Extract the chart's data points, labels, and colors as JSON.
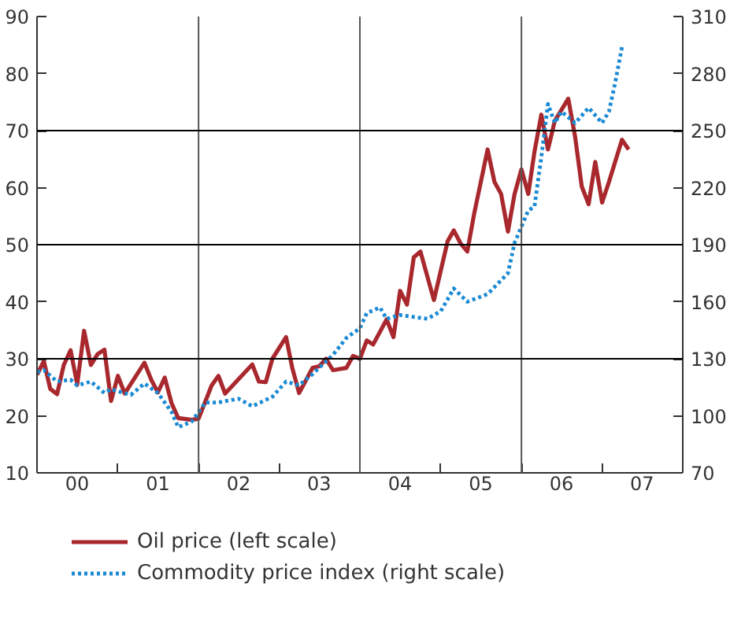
{
  "chart_data": {
    "type": "line",
    "xlim": [
      "2000-01",
      "2008-01"
    ],
    "ylim": [
      10,
      90
    ],
    "y2lim": [
      70,
      310
    ],
    "xticks": [
      {
        "value": "2000-07",
        "label": "00"
      },
      {
        "value": "2001-07",
        "label": "01"
      },
      {
        "value": "2002-07",
        "label": "02"
      },
      {
        "value": "2003-07",
        "label": "03"
      },
      {
        "value": "2004-07",
        "label": "04"
      },
      {
        "value": "2005-07",
        "label": "05"
      },
      {
        "value": "2006-07",
        "label": "06"
      },
      {
        "value": "2007-07",
        "label": "07"
      },
      {
        "value": "2001-01",
        "label": null
      },
      {
        "value": "2002-01",
        "label": null
      },
      {
        "value": "2003-01",
        "label": null
      },
      {
        "value": "2004-01",
        "label": null
      },
      {
        "value": "2005-01",
        "label": null
      },
      {
        "value": "2006-01",
        "label": null
      },
      {
        "value": "2007-01",
        "label": null
      }
    ],
    "yticks": [
      10,
      20,
      30,
      40,
      50,
      60,
      70,
      80,
      90
    ],
    "y2ticks": [
      70,
      100,
      130,
      160,
      190,
      220,
      250,
      280,
      310
    ],
    "grid": false,
    "legend": "bottom",
    "ref_lines": [
      {
        "axis": "x",
        "value": "2002-01",
        "color": "#555555"
      },
      {
        "axis": "x",
        "value": "2004-01",
        "color": "#555555"
      },
      {
        "axis": "x",
        "value": "2006-01",
        "color": "#555555"
      },
      {
        "axis": "y",
        "value": 30,
        "color": "#000000"
      },
      {
        "axis": "y",
        "value": 50,
        "color": "#000000"
      },
      {
        "axis": "y",
        "value": 70,
        "color": "#000000"
      }
    ],
    "series": [
      {
        "name": "Oil price (left scale)",
        "color": "#a8282e",
        "line_style": "solid",
        "x": [
          "2000-01",
          "2000-02",
          "2000-03",
          "2000-04",
          "2000-05",
          "2000-06",
          "2000-07",
          "2000-08",
          "2000-09",
          "2000-10",
          "2000-11",
          "2000-12",
          "2001-01",
          "2001-02",
          "2001-05",
          "2001-06",
          "2001-07",
          "2001-08",
          "2001-09",
          "2001-10",
          "2001-12",
          "2002-01",
          "2002-03",
          "2002-04",
          "2002-05",
          "2002-09",
          "2002-10",
          "2002-11",
          "2002-12",
          "2003-02",
          "2003-03",
          "2003-04",
          "2003-06",
          "2003-07",
          "2003-08",
          "2003-09",
          "2003-11",
          "2003-12",
          "2004-01",
          "2004-02",
          "2004-03",
          "2004-05",
          "2004-06",
          "2004-07",
          "2004-08",
          "2004-09",
          "2004-10",
          "2004-12",
          "2005-02",
          "2005-03",
          "2005-04",
          "2005-05",
          "2005-06",
          "2005-08",
          "2005-09",
          "2005-10",
          "2005-11",
          "2005-12",
          "2006-01",
          "2006-02",
          "2006-03",
          "2006-04",
          "2006-05",
          "2006-06",
          "2006-08",
          "2006-09",
          "2006-10",
          "2006-11",
          "2006-12",
          "2007-01",
          "2007-02",
          "2007-04",
          "2007-05"
        ],
        "values": [
          27.2,
          29.6,
          24.7,
          23.8,
          28.9,
          31.5,
          25.5,
          34.9,
          28.9,
          30.8,
          31.6,
          22.6,
          27,
          23.9,
          29.3,
          26.3,
          24.1,
          26.7,
          22.2,
          19.6,
          19.3,
          19.5,
          25.3,
          27,
          23.9,
          29,
          26,
          25.9,
          30,
          33.8,
          28.4,
          24,
          28.4,
          28.7,
          30,
          28,
          28.4,
          30.5,
          30,
          33.2,
          32.5,
          36.9,
          33.8,
          41.9,
          39.5,
          47.8,
          48.8,
          40.3,
          50.6,
          52.5,
          50.2,
          48.8,
          55.4,
          66.7,
          61,
          58.9,
          52.3,
          58.9,
          63.2,
          58.9,
          66.3,
          72.8,
          66.7,
          71.7,
          75.6,
          68.9,
          60.2,
          57.1,
          64.5,
          57.4,
          61,
          68.4,
          66.7
        ]
      },
      {
        "name": "Commodity price index (right scale)",
        "color": "#1a8ad4",
        "line_style": "dotted",
        "axis": "y2",
        "x": [
          "2000-01",
          "2000-02",
          "2000-04",
          "2000-06",
          "2000-07",
          "2000-09",
          "2000-11",
          "2000-12",
          "2001-03",
          "2001-05",
          "2001-07",
          "2001-09",
          "2001-10",
          "2001-12",
          "2002-02",
          "2002-04",
          "2002-07",
          "2002-09",
          "2002-12",
          "2003-02",
          "2003-04",
          "2003-06",
          "2003-09",
          "2003-11",
          "2004-01",
          "2004-02",
          "2004-04",
          "2004-05",
          "2004-07",
          "2004-11",
          "2005-01",
          "2005-03",
          "2005-05",
          "2005-08",
          "2005-11",
          "2005-12",
          "2006-02",
          "2006-03",
          "2006-04",
          "2006-05",
          "2006-06",
          "2006-07",
          "2006-09",
          "2006-11",
          "2007-01",
          "2007-02",
          "2007-03",
          "2007-04"
        ],
        "values": [
          123,
          124,
          118,
          119,
          116,
          118,
          112,
          114,
          111,
          117,
          112,
          102,
          94,
          97,
          107,
          107,
          109,
          105,
          110,
          118,
          116,
          122,
          132,
          141,
          146,
          154,
          157,
          151,
          153,
          151,
          155,
          167,
          160,
          164,
          175,
          191,
          208,
          210,
          236,
          264,
          254,
          260,
          254,
          262,
          254,
          260,
          275,
          294
        ]
      }
    ]
  }
}
